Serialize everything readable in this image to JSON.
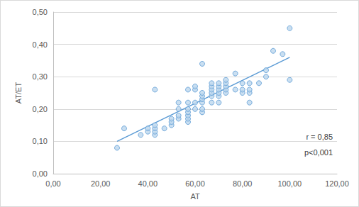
{
  "chart_data": {
    "type": "scatter",
    "x_label": "AT",
    "y_label": "AT/ET",
    "x": [
      27,
      30,
      37,
      40,
      40,
      43,
      43,
      43,
      43,
      43,
      47,
      50,
      50,
      50,
      53,
      53,
      53,
      53,
      57,
      57,
      57,
      57,
      57,
      57,
      57,
      60,
      60,
      60,
      60,
      63,
      63,
      63,
      63,
      63,
      63,
      63,
      67,
      67,
      67,
      67,
      67,
      67,
      70,
      70,
      70,
      70,
      70,
      70,
      73,
      73,
      73,
      73,
      73,
      77,
      77,
      80,
      80,
      80,
      83,
      83,
      83,
      83,
      87,
      90,
      90,
      93,
      97,
      100,
      100
    ],
    "values": [
      0.08,
      0.14,
      0.12,
      0.13,
      0.14,
      0.12,
      0.13,
      0.14,
      0.15,
      0.26,
      0.14,
      0.15,
      0.16,
      0.17,
      0.17,
      0.18,
      0.2,
      0.22,
      0.16,
      0.17,
      0.18,
      0.19,
      0.2,
      0.22,
      0.26,
      0.2,
      0.22,
      0.26,
      0.27,
      0.19,
      0.2,
      0.22,
      0.23,
      0.24,
      0.25,
      0.34,
      0.22,
      0.24,
      0.25,
      0.26,
      0.27,
      0.28,
      0.22,
      0.24,
      0.25,
      0.26,
      0.27,
      0.28,
      0.25,
      0.26,
      0.27,
      0.28,
      0.29,
      0.26,
      0.31,
      0.25,
      0.26,
      0.28,
      0.22,
      0.25,
      0.26,
      0.28,
      0.28,
      0.3,
      0.32,
      0.38,
      0.37,
      0.29,
      0.45
    ],
    "color": "#5b9bd5",
    "marker": "circle",
    "trendline": {
      "x": [
        27,
        100
      ],
      "values": [
        0.1,
        0.36
      ],
      "color": "#5b9bd5"
    },
    "annotations": [
      "r = 0,85",
      "p<0,001"
    ],
    "xlim": [
      0,
      120
    ],
    "xticks": [
      {
        "value": 0,
        "label": "0,00"
      },
      {
        "value": 20,
        "label": "20,00"
      },
      {
        "value": 40,
        "label": "40,00"
      },
      {
        "value": 60,
        "label": "60,00"
      },
      {
        "value": 80,
        "label": "80,00"
      },
      {
        "value": 100,
        "label": "100,00"
      },
      {
        "value": 120,
        "label": "120,00"
      }
    ],
    "ylim": [
      0,
      0.5
    ],
    "yticks": [
      {
        "value": 0,
        "label": "0,00"
      },
      {
        "value": 0.1,
        "label": "0,10"
      },
      {
        "value": 0.2,
        "label": "0,20"
      },
      {
        "value": 0.3,
        "label": "0,30"
      },
      {
        "value": 0.4,
        "label": "0,40"
      },
      {
        "value": 0.5,
        "label": "0,50"
      }
    ],
    "grid": true
  }
}
